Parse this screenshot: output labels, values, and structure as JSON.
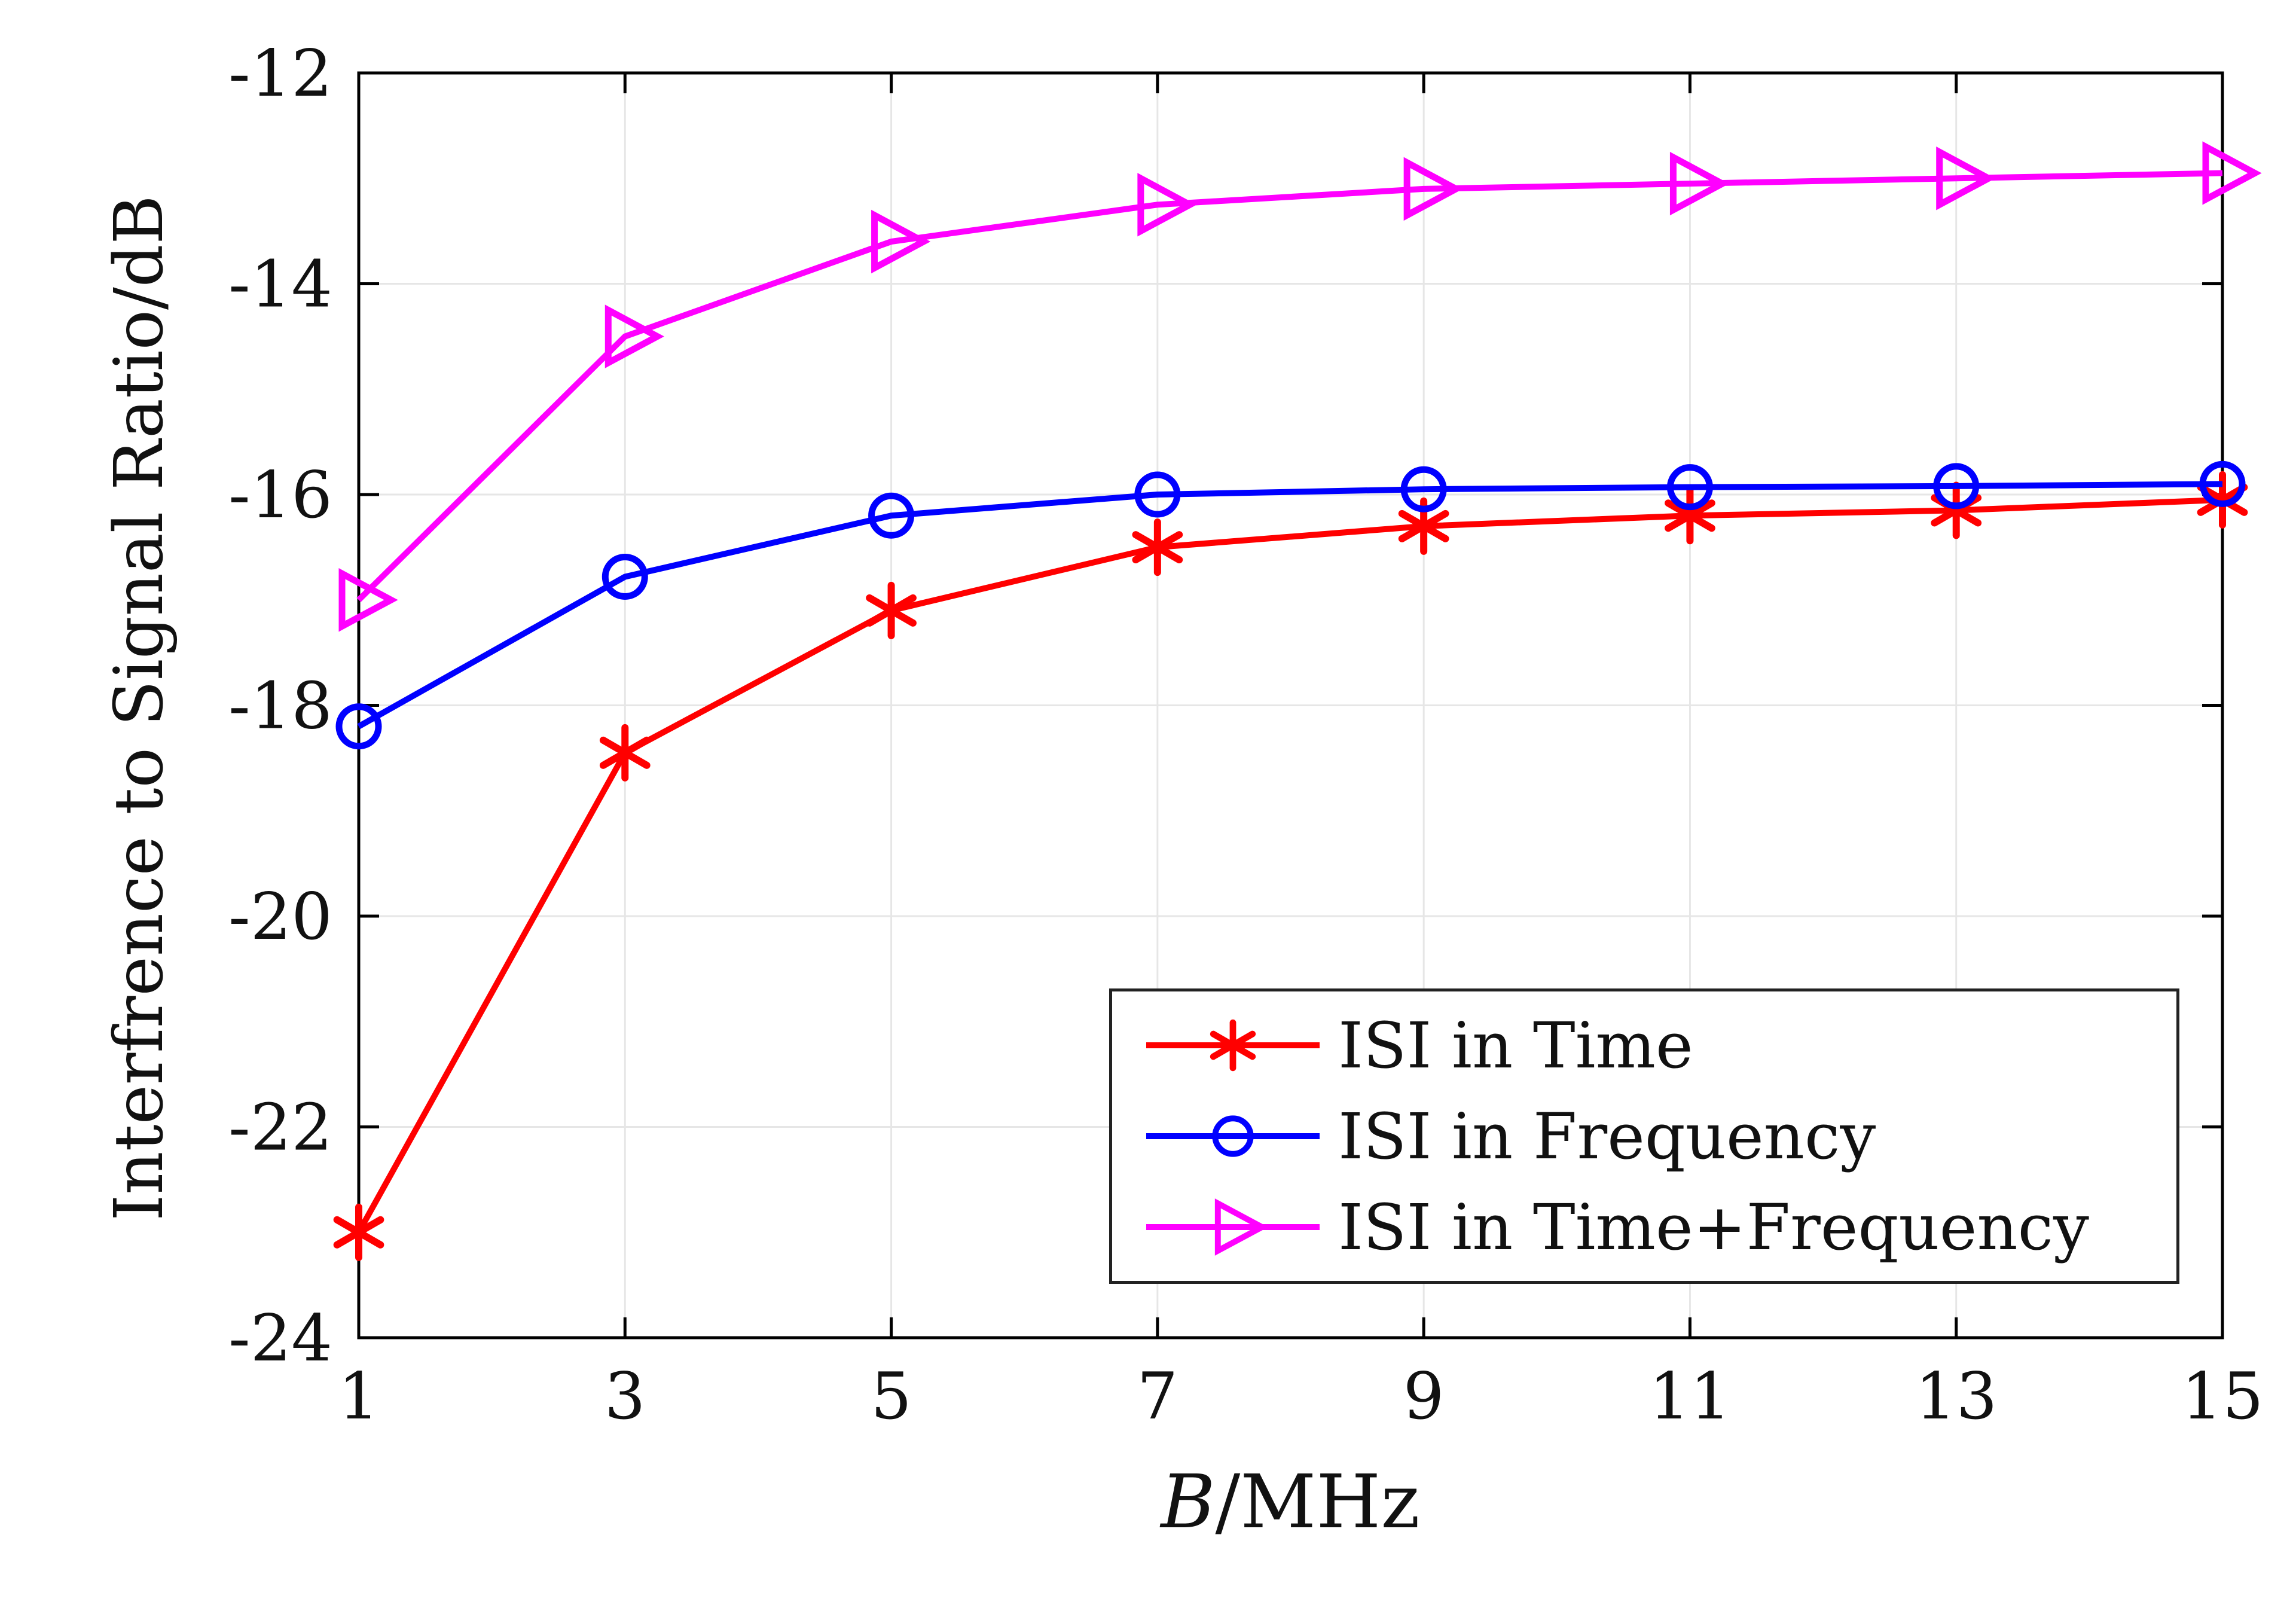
{
  "figure": {
    "background": "#FFFFFF"
  },
  "axis": {
    "ylabel": "Interfrence to Signal Ratio/dB",
    "xlabel_b": "B",
    "xlabel_unit": "/MHz"
  },
  "chart_data": {
    "type": "line",
    "title": "",
    "xlabel": "B/MHz",
    "ylabel": "Interfrence to Signal Ratio/dB",
    "x": [
      1,
      3,
      5,
      7,
      9,
      11,
      13,
      15
    ],
    "xlim": [
      1,
      15
    ],
    "ylim": [
      -24,
      -12
    ],
    "xticks": [
      1,
      3,
      5,
      7,
      9,
      11,
      13,
      15
    ],
    "yticks": [
      -24,
      -22,
      -20,
      -18,
      -16,
      -14,
      -12
    ],
    "grid": true,
    "legend_position": "lower-right",
    "axis_color": "#000000",
    "grid_color": "#E6E6E6",
    "series": [
      {
        "name": "ISI in Time",
        "color": "#FF0000",
        "marker": "asterisk",
        "values": [
          -23.0,
          -18.45,
          -17.1,
          -16.5,
          -16.3,
          -16.2,
          -16.15,
          -16.05
        ]
      },
      {
        "name": "ISI in Frequency",
        "color": "#0000FF",
        "marker": "circle",
        "values": [
          -18.2,
          -16.78,
          -16.2,
          -16.0,
          -15.95,
          -15.93,
          -15.92,
          -15.9
        ]
      },
      {
        "name": "ISI in Time+Frequency",
        "color": "#FF00FF",
        "marker": "triangle-right",
        "values": [
          -17.0,
          -14.5,
          -13.6,
          -13.25,
          -13.1,
          -13.05,
          -13.0,
          -12.95
        ]
      }
    ]
  }
}
